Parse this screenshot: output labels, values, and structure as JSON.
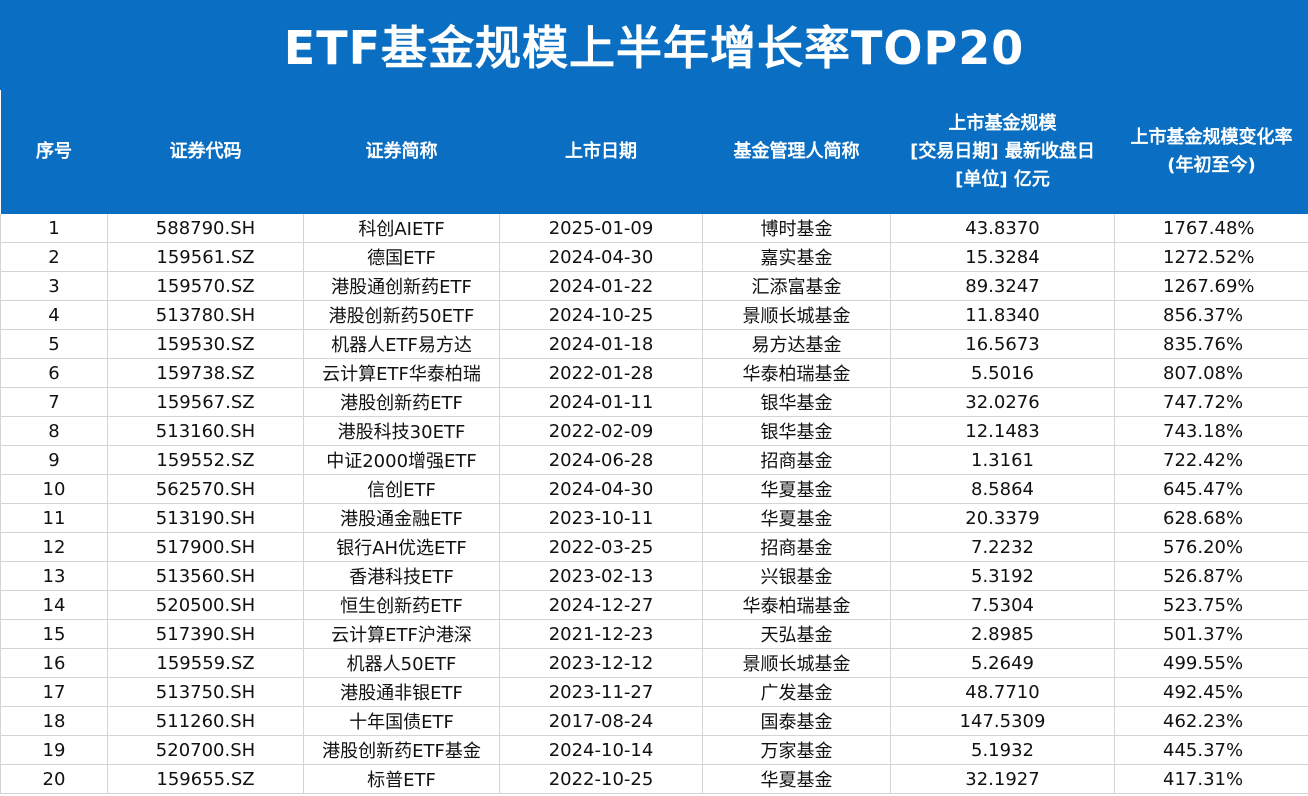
{
  "title": "ETF基金规模上半年增长率TOP20",
  "colors": {
    "header_bg": "#0a6fc2",
    "header_text": "#ffffff",
    "grid_line": "#d4d4d4"
  },
  "columns": [
    {
      "lines": [
        "序号"
      ]
    },
    {
      "lines": [
        "证券代码"
      ]
    },
    {
      "lines": [
        "证券简称"
      ]
    },
    {
      "lines": [
        "上市日期"
      ]
    },
    {
      "lines": [
        "基金管理人简称"
      ]
    },
    {
      "lines": [
        "上市基金规模",
        "[交易日期] 最新收盘日",
        "[单位] 亿元"
      ]
    },
    {
      "lines": [
        "上市基金规模变化率",
        "(年初至今)"
      ]
    }
  ],
  "rows": [
    [
      "1",
      "588790.SH",
      "科创AIETF",
      "2025-01-09",
      "博时基金",
      "43.8370",
      "1767.48%"
    ],
    [
      "2",
      "159561.SZ",
      "德国ETF",
      "2024-04-30",
      "嘉实基金",
      "15.3284",
      "1272.52%"
    ],
    [
      "3",
      "159570.SZ",
      "港股通创新药ETF",
      "2024-01-22",
      "汇添富基金",
      "89.3247",
      "1267.69%"
    ],
    [
      "4",
      "513780.SH",
      "港股创新药50ETF",
      "2024-10-25",
      "景顺长城基金",
      "11.8340",
      "856.37%"
    ],
    [
      "5",
      "159530.SZ",
      "机器人ETF易方达",
      "2024-01-18",
      "易方达基金",
      "16.5673",
      "835.76%"
    ],
    [
      "6",
      "159738.SZ",
      "云计算ETF华泰柏瑞",
      "2022-01-28",
      "华泰柏瑞基金",
      "5.5016",
      "807.08%"
    ],
    [
      "7",
      "159567.SZ",
      "港股创新药ETF",
      "2024-01-11",
      "银华基金",
      "32.0276",
      "747.72%"
    ],
    [
      "8",
      "513160.SH",
      "港股科技30ETF",
      "2022-02-09",
      "银华基金",
      "12.1483",
      "743.18%"
    ],
    [
      "9",
      "159552.SZ",
      "中证2000增强ETF",
      "2024-06-28",
      "招商基金",
      "1.3161",
      "722.42%"
    ],
    [
      "10",
      "562570.SH",
      "信创ETF",
      "2024-04-30",
      "华夏基金",
      "8.5864",
      "645.47%"
    ],
    [
      "11",
      "513190.SH",
      "港股通金融ETF",
      "2023-10-11",
      "华夏基金",
      "20.3379",
      "628.68%"
    ],
    [
      "12",
      "517900.SH",
      "银行AH优选ETF",
      "2022-03-25",
      "招商基金",
      "7.2232",
      "576.20%"
    ],
    [
      "13",
      "513560.SH",
      "香港科技ETF",
      "2023-02-13",
      "兴银基金",
      "5.3192",
      "526.87%"
    ],
    [
      "14",
      "520500.SH",
      "恒生创新药ETF",
      "2024-12-27",
      "华泰柏瑞基金",
      "7.5304",
      "523.75%"
    ],
    [
      "15",
      "517390.SH",
      "云计算ETF沪港深",
      "2021-12-23",
      "天弘基金",
      "2.8985",
      "501.37%"
    ],
    [
      "16",
      "159559.SZ",
      "机器人50ETF",
      "2023-12-12",
      "景顺长城基金",
      "5.2649",
      "499.55%"
    ],
    [
      "17",
      "513750.SH",
      "港股通非银ETF",
      "2023-11-27",
      "广发基金",
      "48.7710",
      "492.45%"
    ],
    [
      "18",
      "511260.SH",
      "十年国债ETF",
      "2017-08-24",
      "国泰基金",
      "147.5309",
      "462.23%"
    ],
    [
      "19",
      "520700.SH",
      "港股创新药ETF基金",
      "2024-10-14",
      "万家基金",
      "5.1932",
      "445.37%"
    ],
    [
      "20",
      "159655.SZ",
      "标普ETF",
      "2022-10-25",
      "华夏基金",
      "32.1927",
      "417.31%"
    ]
  ]
}
